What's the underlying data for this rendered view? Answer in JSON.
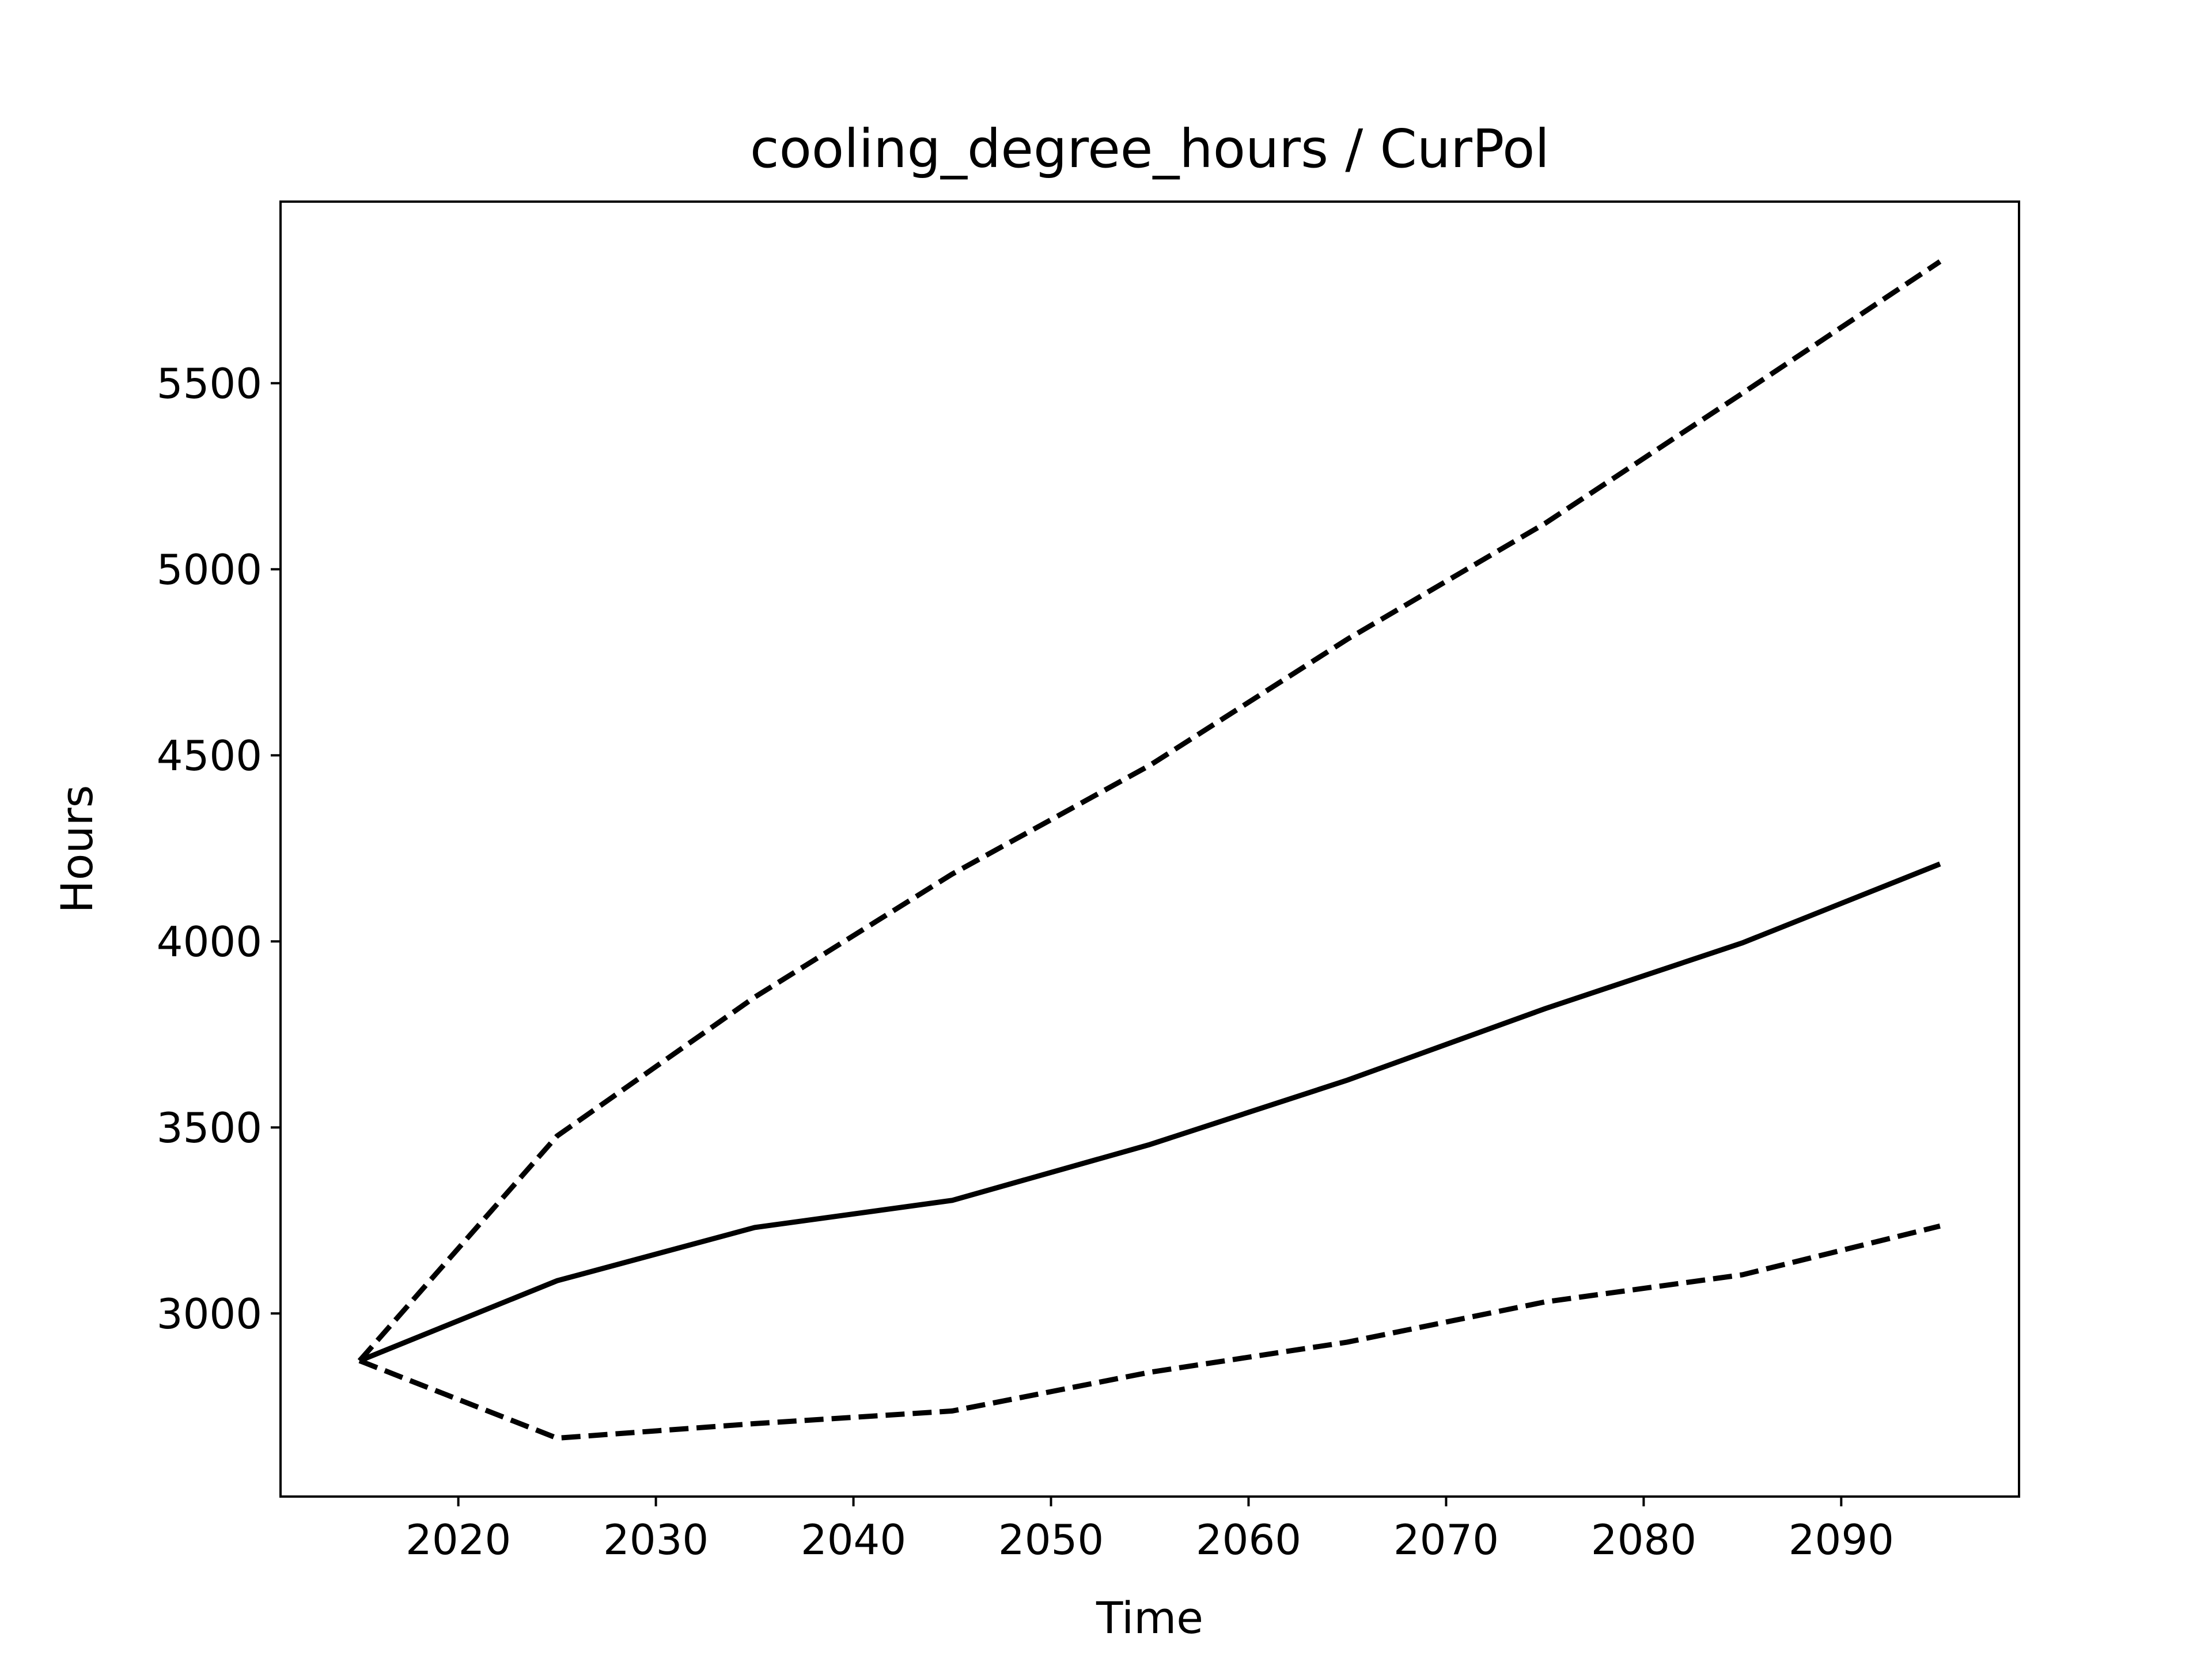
{
  "chart_data": {
    "type": "line",
    "title": "cooling_degree_hours / CurPol",
    "xlabel": "Time",
    "ylabel": "Hours",
    "x": [
      2015,
      2025,
      2035,
      2045,
      2055,
      2065,
      2075,
      2085,
      2095
    ],
    "series": [
      {
        "color": "#000000",
        "dash": "solid",
        "values": [
          2873,
          3088,
          3231,
          3304,
          3454,
          3627,
          3819,
          3996,
          4208
        ]
      },
      {
        "color": "#000000",
        "dash": "dashed",
        "values": [
          2873,
          3477,
          3850,
          4181,
          4473,
          4812,
          5123,
          5473,
          5827
        ]
      },
      {
        "color": "#000000",
        "dash": "dashed",
        "values": [
          2873,
          2665,
          2704,
          2738,
          2842,
          2923,
          3031,
          3104,
          3235
        ]
      }
    ],
    "xlim": [
      2011,
      2099
    ],
    "xticks": [
      2020,
      2030,
      2040,
      2050,
      2060,
      2070,
      2080,
      2090
    ],
    "ylim": [
      2508,
      5988
    ],
    "yticks": [
      3000,
      3500,
      4000,
      4500,
      5000,
      5500
    ],
    "grid": false
  }
}
